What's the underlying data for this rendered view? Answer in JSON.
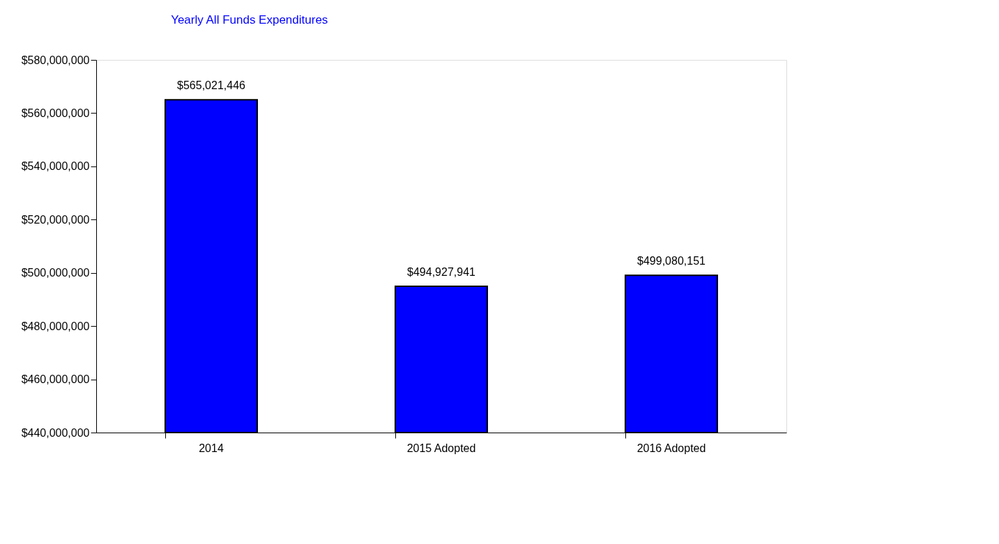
{
  "chart_data": {
    "type": "bar",
    "title": "Yearly All Funds Expenditures",
    "categories": [
      "2014",
      "2015 Adopted",
      "2016 Adopted"
    ],
    "values": [
      565021446,
      494927941,
      499080151
    ],
    "value_labels": [
      "$565,021,446",
      "$494,927,941",
      "$499,080,151"
    ],
    "color": "#0000ff",
    "ylim": [
      440000000,
      580000000
    ],
    "yticks": [
      {
        "value": 440000000,
        "label": "$440,000,000"
      },
      {
        "value": 460000000,
        "label": "$460,000,000"
      },
      {
        "value": 480000000,
        "label": "$480,000,000"
      },
      {
        "value": 500000000,
        "label": "$500,000,000"
      },
      {
        "value": 520000000,
        "label": "$520,000,000"
      },
      {
        "value": 540000000,
        "label": "$540,000,000"
      },
      {
        "value": 560000000,
        "label": "$560,000,000"
      },
      {
        "value": 580000000,
        "label": "$580,000,000"
      }
    ],
    "grid": false
  }
}
